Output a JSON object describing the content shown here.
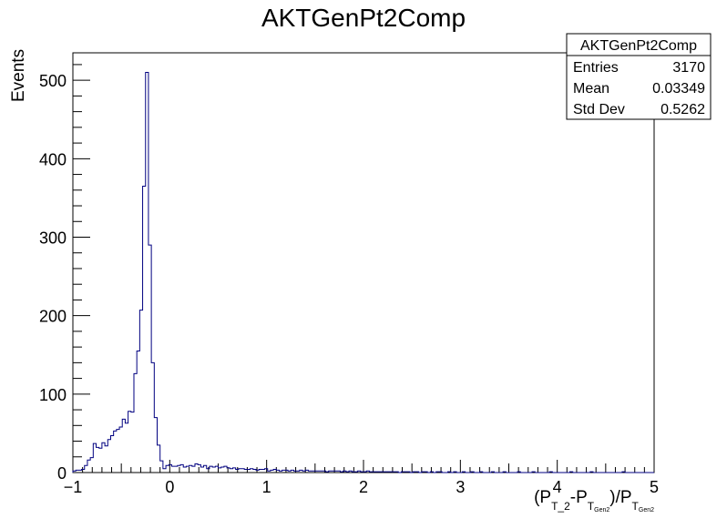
{
  "chart_data": {
    "type": "histogram",
    "title": "AKTGenPt2Comp",
    "ylabel": "Events",
    "xlabel": {
      "p1": "(P",
      "s1": "T_2",
      "p2": "-P",
      "s2": "T",
      "ss2": "Gen2",
      "p3": ")/P",
      "s3": "T",
      "ss3": "Gen2"
    },
    "xlim": [
      -1,
      5
    ],
    "ylim": [
      0,
      535
    ],
    "x_ticks": [
      -1,
      0,
      1,
      2,
      3,
      4,
      5
    ],
    "y_ticks": [
      0,
      100,
      200,
      300,
      400,
      500
    ],
    "bin_width": 0.03,
    "line_color": "#000080",
    "stats_box": {
      "title": "AKTGenPt2Comp",
      "rows": [
        {
          "label": "Entries",
          "value": "3170"
        },
        {
          "label": "Mean",
          "value": "0.03349"
        },
        {
          "label": "Std Dev",
          "value": "0.5262"
        }
      ]
    },
    "values": [
      2,
      3,
      3,
      4,
      9,
      16,
      19,
      37,
      32,
      31,
      38,
      34,
      42,
      47,
      53,
      55,
      58,
      68,
      63,
      78,
      77,
      126,
      155,
      207,
      365,
      510,
      290,
      140,
      70,
      35,
      15,
      5,
      9,
      10,
      8,
      8,
      9,
      10,
      7,
      8,
      9,
      8,
      11,
      10,
      7,
      9,
      5,
      8,
      7,
      8,
      6,
      7,
      8,
      6,
      5,
      6,
      4,
      5,
      5,
      4,
      4,
      5,
      4,
      3,
      4,
      4,
      5,
      2,
      3,
      4,
      3,
      2,
      3,
      3,
      2,
      3,
      2,
      2,
      3,
      2,
      3,
      2,
      2,
      2,
      2,
      2,
      2,
      1,
      2,
      2,
      2,
      2,
      1,
      2,
      1,
      2,
      1,
      1,
      2,
      1,
      1,
      2,
      1,
      1,
      1,
      1,
      1,
      1,
      1,
      1,
      1,
      1,
      0,
      1,
      1,
      1,
      0,
      1,
      1,
      0,
      1,
      1,
      0,
      1,
      0,
      1,
      1,
      0,
      0,
      1,
      0,
      1,
      0,
      0,
      1,
      0,
      0,
      1,
      0,
      0,
      1,
      0,
      0,
      0,
      1,
      0,
      0,
      0,
      1,
      0,
      0,
      0,
      0,
      1,
      0,
      0,
      0,
      0,
      1,
      0,
      0,
      0,
      0,
      0,
      1,
      0,
      0,
      0,
      0,
      0,
      0,
      1,
      0,
      0,
      0,
      0,
      0,
      0,
      1,
      0,
      0,
      0,
      0,
      0,
      0,
      0,
      0,
      0,
      0,
      1,
      0,
      0,
      0,
      0,
      0,
      0,
      0,
      0,
      0,
      0
    ]
  }
}
